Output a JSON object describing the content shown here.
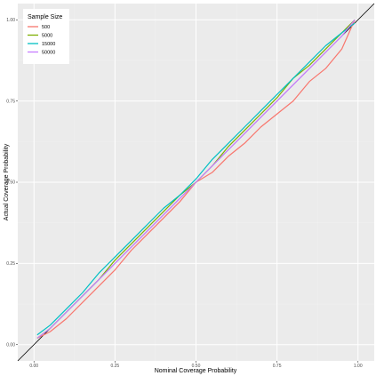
{
  "chart_data": {
    "type": "line",
    "title": "",
    "xlabel": "Nominal Coverage Probability",
    "ylabel": "Actual Coverage Probability",
    "xlim": [
      -0.05,
      1.05
    ],
    "ylim": [
      -0.05,
      1.05
    ],
    "x_ticks": [
      0.0,
      0.25,
      0.5,
      0.75,
      1.0
    ],
    "x_tick_labels": [
      "0.00",
      "0.25",
      "0.50",
      "0.75",
      "1.00"
    ],
    "y_ticks": [
      0.0,
      0.25,
      0.5,
      0.75,
      1.0
    ],
    "y_tick_labels": [
      "0.00",
      "0.25",
      "0.50",
      "0.75",
      "1.00"
    ],
    "grid": true,
    "reference_line": {
      "x": [
        -0.05,
        1.05
      ],
      "y": [
        -0.05,
        1.05
      ],
      "color": "#000000"
    },
    "legend": {
      "title": "Sample Size",
      "position": "top-left",
      "entries": [
        "500",
        "5000",
        "15000",
        "50000"
      ]
    },
    "colors": {
      "panel_bg": "#ebebeb",
      "grid_major": "#ffffff",
      "grid_minor": "#f2f2f2",
      "legend_bg": "#ffffff"
    },
    "x": [
      0.01,
      0.05,
      0.1,
      0.15,
      0.2,
      0.25,
      0.3,
      0.35,
      0.4,
      0.45,
      0.5,
      0.55,
      0.6,
      0.65,
      0.7,
      0.75,
      0.8,
      0.85,
      0.9,
      0.95,
      0.99
    ],
    "series": [
      {
        "name": "500",
        "color": "#f8766d",
        "values": [
          0.02,
          0.04,
          0.08,
          0.13,
          0.18,
          0.23,
          0.29,
          0.34,
          0.39,
          0.44,
          0.5,
          0.53,
          0.58,
          0.62,
          0.67,
          0.71,
          0.75,
          0.81,
          0.85,
          0.91,
          1.0
        ]
      },
      {
        "name": "5000",
        "color": "#7cae00",
        "values": [
          0.02,
          0.05,
          0.1,
          0.15,
          0.2,
          0.26,
          0.31,
          0.36,
          0.41,
          0.46,
          0.5,
          0.55,
          0.61,
          0.66,
          0.71,
          0.76,
          0.82,
          0.86,
          0.91,
          0.96,
          1.0
        ]
      },
      {
        "name": "15000",
        "color": "#00bfc4",
        "values": [
          0.03,
          0.06,
          0.11,
          0.16,
          0.22,
          0.27,
          0.32,
          0.37,
          0.42,
          0.46,
          0.51,
          0.57,
          0.62,
          0.67,
          0.72,
          0.77,
          0.82,
          0.87,
          0.92,
          0.96,
          0.99
        ]
      },
      {
        "name": "50000",
        "color": "#c77cff",
        "values": [
          0.02,
          0.05,
          0.1,
          0.15,
          0.2,
          0.25,
          0.3,
          0.35,
          0.4,
          0.45,
          0.5,
          0.55,
          0.6,
          0.65,
          0.7,
          0.75,
          0.8,
          0.85,
          0.9,
          0.95,
          1.0
        ]
      }
    ]
  }
}
